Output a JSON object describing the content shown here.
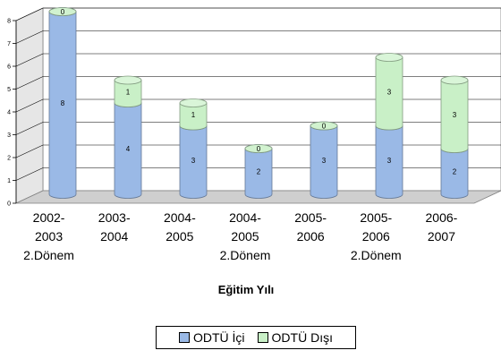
{
  "chart_data": {
    "type": "bar",
    "stacked": true,
    "three_d": true,
    "bar_shape": "cylinder",
    "categories": [
      [
        "2002-",
        "2003",
        "2.Dönem"
      ],
      [
        "2003-",
        "2004"
      ],
      [
        "2004-",
        "2005"
      ],
      [
        "2004-",
        "2005",
        "2.Dönem"
      ],
      [
        "2005-",
        "2006"
      ],
      [
        "2005-",
        "2006",
        "2.Dönem"
      ],
      [
        "2006-",
        "2007"
      ]
    ],
    "series": [
      {
        "name": "ODTÜ İçi",
        "color": "#9ab9e6",
        "values": [
          8,
          4,
          3,
          2,
          3,
          3,
          2
        ]
      },
      {
        "name": "ODTÜ Dışı",
        "color": "#c9f0c7",
        "values": [
          0,
          1,
          1,
          0,
          0,
          3,
          3
        ]
      }
    ],
    "xlabel": "Eğitim Yılı",
    "ylabel": "",
    "ylim": [
      0,
      8
    ],
    "yticks": [
      0,
      1,
      2,
      3,
      4,
      5,
      6,
      7,
      8
    ],
    "grid": true,
    "legend_position": "bottom"
  }
}
